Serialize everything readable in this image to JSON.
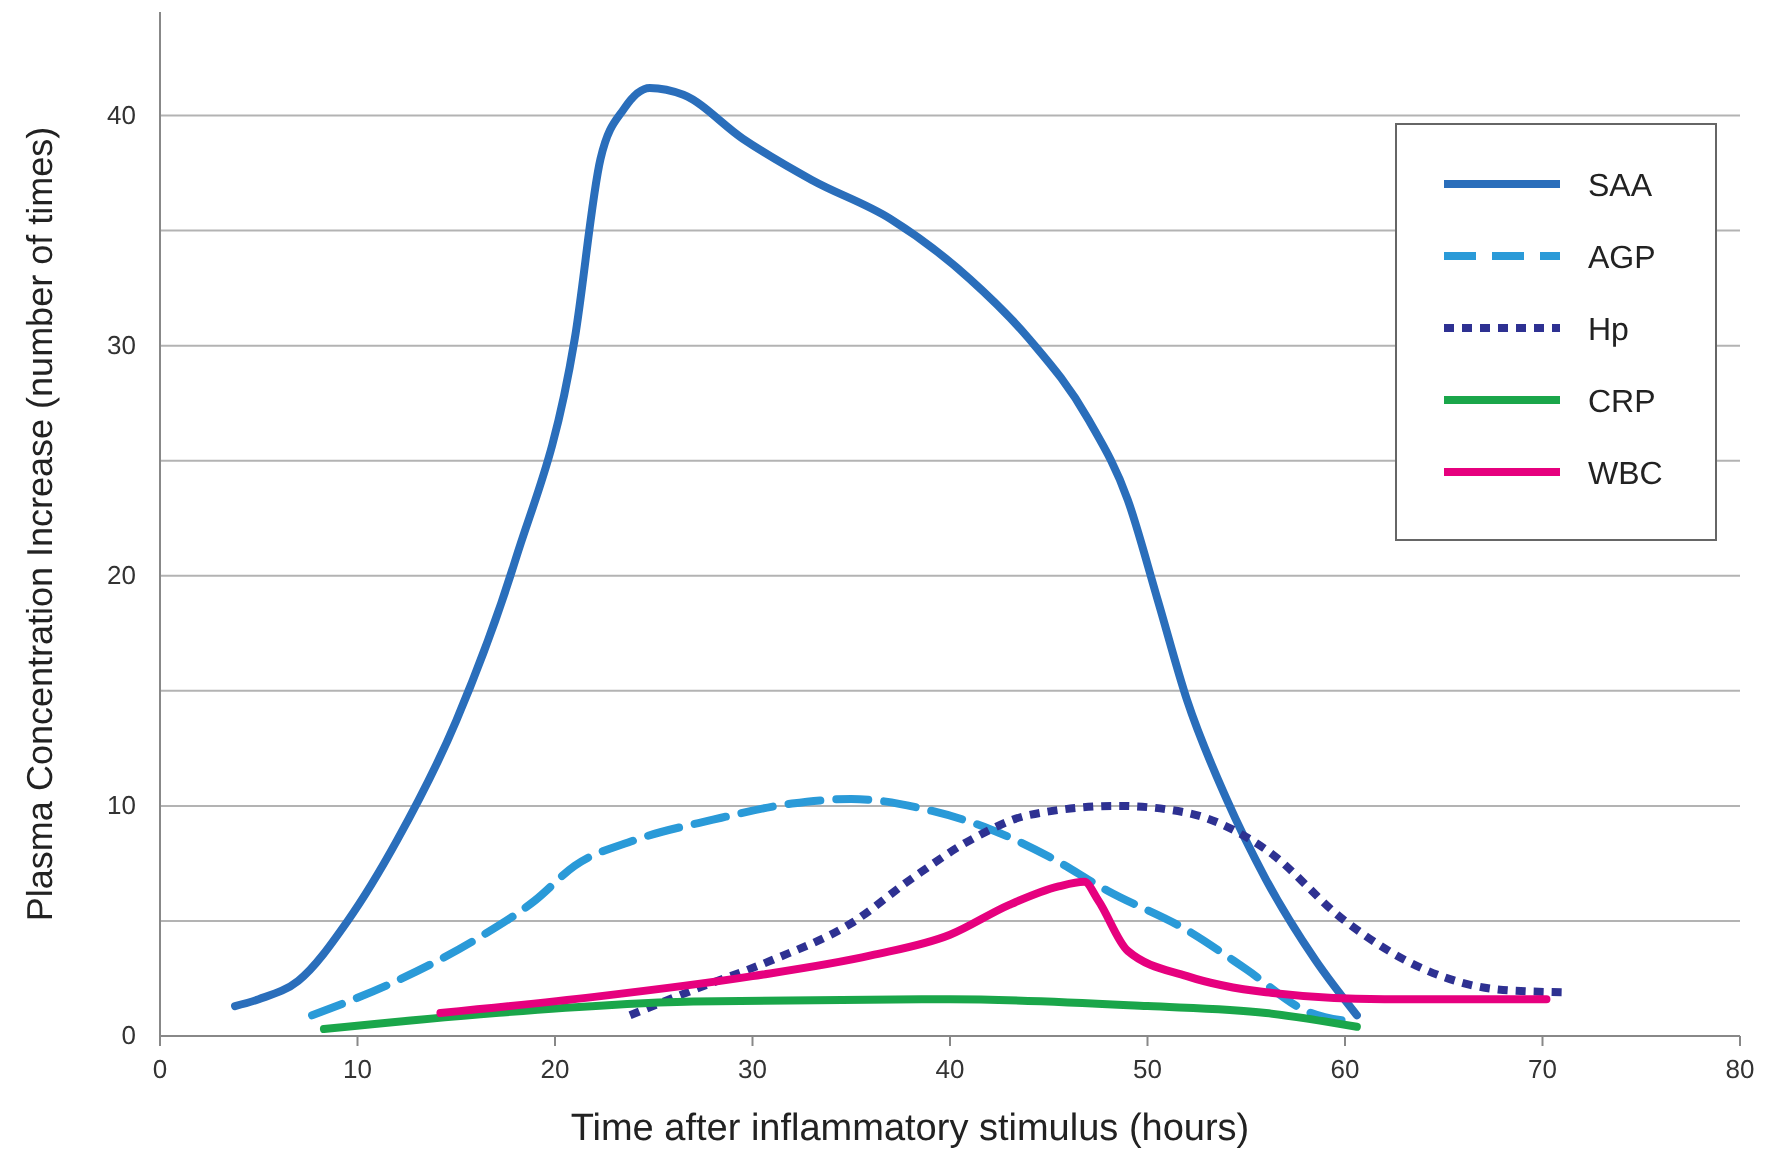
{
  "chart_data": {
    "type": "line",
    "xlabel": "Time after inflammatory stimulus (hours)",
    "ylabel": "Plasma Concentration Increase (number of times)",
    "xlim": [
      0,
      80
    ],
    "xticks": [
      0,
      10,
      20,
      30,
      40,
      50,
      60,
      70,
      80
    ],
    "ylim": [
      0,
      44.5
    ],
    "yticks": [
      0,
      {
        "value": 5,
        "label": null
      },
      10,
      {
        "value": 15,
        "label": null
      },
      20,
      {
        "value": 25,
        "label": null
      },
      30,
      {
        "value": 35,
        "label": null
      },
      40
    ],
    "grid": "y",
    "legend": "top right",
    "series": [
      {
        "name": "SAA",
        "color": "#2a6ebb",
        "line_style": "solid",
        "x": [
          3.8,
          5,
          7,
          9.5,
          12,
          15,
          18,
          21,
          22.3,
          23.5,
          24.8,
          26.5,
          29.5,
          33,
          37,
          41,
          44,
          47,
          49,
          50.5,
          52,
          54,
          56,
          58.5,
          60.6
        ],
        "values": [
          1.3,
          1.6,
          2.4,
          5,
          8.5,
          13.7,
          20.7,
          30.3,
          38.1,
          40.3,
          41.2,
          40.9,
          39,
          37.2,
          35.5,
          32.9,
          30.3,
          26.8,
          23.3,
          19,
          14.6,
          10.3,
          6.8,
          3.3,
          0.9
        ]
      },
      {
        "name": "AGP",
        "color": "#2a9ad8",
        "line_style": "dashed",
        "x": [
          7.7,
          12,
          16,
          19,
          21,
          24,
          28,
          32,
          35,
          39,
          42,
          45,
          48,
          52,
          55,
          58,
          60.6
        ],
        "values": [
          0.9,
          2.4,
          4.2,
          5.9,
          7.4,
          8.5,
          9.4,
          10.1,
          10.3,
          9.8,
          9,
          7.8,
          6.3,
          4.6,
          2.9,
          1.1,
          0.6
        ]
      },
      {
        "name": "Hp",
        "color": "#2e3192",
        "line_style": "dotted",
        "x": [
          23.8,
          27,
          31,
          35,
          38,
          41,
          44,
          48.5,
          52,
          56,
          60,
          64,
          68,
          71
        ],
        "values": [
          0.9,
          2,
          3.3,
          4.9,
          6.8,
          8.5,
          9.6,
          10,
          9.7,
          8.1,
          5,
          2.9,
          2,
          1.9
        ]
      },
      {
        "name": "CRP",
        "color": "#1aa64a",
        "line_style": "solid",
        "x": [
          8.3,
          17,
          27,
          40,
          50,
          56,
          60.6
        ],
        "values": [
          0.3,
          1,
          1.5,
          1.6,
          1.3,
          1,
          0.4
        ]
      },
      {
        "name": "WBC",
        "color": "#e6007e",
        "line_style": "solid",
        "x": [
          14.2,
          22,
          30,
          36,
          40,
          43,
          45.5,
          46.8,
          47.5,
          49,
          52,
          56,
          62,
          70.2
        ],
        "values": [
          1,
          1.7,
          2.6,
          3.5,
          4.4,
          5.7,
          6.5,
          6.7,
          5.9,
          3.7,
          2.6,
          1.9,
          1.6,
          1.6
        ]
      }
    ]
  }
}
